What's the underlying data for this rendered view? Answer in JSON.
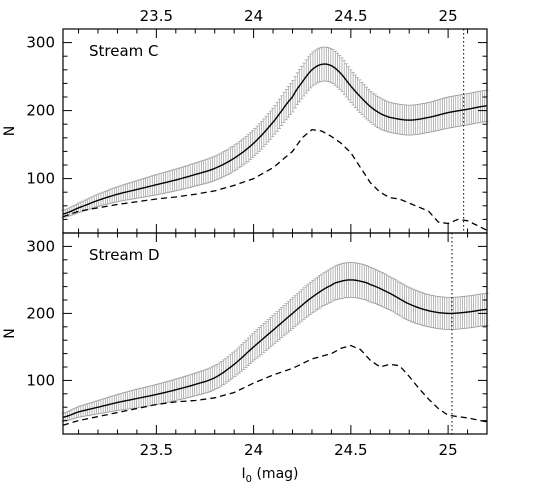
{
  "chart_data": [
    {
      "type": "line",
      "panel_label": "Stream C",
      "xlabel": "I",
      "xlabel_subscript": "0",
      "xlabel_suffix": " (mag)",
      "ylabel": "N",
      "xlim": [
        23.02,
        25.2
      ],
      "ylim": [
        20,
        320
      ],
      "xticks": [
        23.5,
        24,
        24.5,
        25
      ],
      "xtick_labels": [
        "23.5",
        "24",
        "24.5",
        "25"
      ],
      "yticks": [
        100,
        200,
        300
      ],
      "ytick_labels": [
        "100",
        "200",
        "300"
      ],
      "vline_x": 25.08,
      "vline_style": "dotted",
      "grid": false,
      "series": [
        {
          "style": "solid-with-errorbars",
          "x": [
            23.02,
            23.1,
            23.2,
            23.3,
            23.4,
            23.5,
            23.6,
            23.7,
            23.8,
            23.9,
            24.0,
            24.1,
            24.2,
            24.25,
            24.3,
            24.35,
            24.4,
            24.45,
            24.5,
            24.55,
            24.6,
            24.65,
            24.7,
            24.8,
            24.9,
            25.0,
            25.1,
            25.2
          ],
          "values": [
            48,
            57,
            68,
            77,
            84,
            91,
            98,
            106,
            115,
            130,
            152,
            183,
            220,
            242,
            260,
            268,
            266,
            254,
            236,
            220,
            206,
            196,
            190,
            186,
            190,
            197,
            202,
            207
          ],
          "error": [
            5,
            7,
            9,
            11,
            13,
            15,
            16,
            17,
            18,
            19,
            20,
            21,
            23,
            24,
            25,
            25,
            25,
            25,
            24,
            24,
            23,
            23,
            22,
            22,
            22,
            23,
            23,
            23
          ]
        },
        {
          "style": "dashed",
          "x": [
            23.02,
            23.1,
            23.2,
            23.3,
            23.4,
            23.5,
            23.6,
            23.7,
            23.8,
            23.9,
            24.0,
            24.1,
            24.2,
            24.25,
            24.3,
            24.35,
            24.4,
            24.45,
            24.5,
            24.55,
            24.6,
            24.65,
            24.7,
            24.75,
            24.8,
            24.85,
            24.9,
            24.95,
            25.0,
            25.05,
            25.1,
            25.2
          ],
          "values": [
            44,
            52,
            57,
            62,
            66,
            70,
            73,
            77,
            82,
            90,
            100,
            116,
            140,
            160,
            172,
            170,
            162,
            152,
            138,
            116,
            94,
            80,
            72,
            70,
            64,
            58,
            52,
            36,
            34,
            40,
            38,
            24
          ]
        }
      ]
    },
    {
      "type": "line",
      "panel_label": "Stream D",
      "xlabel": "I",
      "xlabel_subscript": "0",
      "xlabel_suffix": " (mag)",
      "ylabel": "N",
      "xlim": [
        23.02,
        25.2
      ],
      "ylim": [
        20,
        320
      ],
      "xticks": [
        23.5,
        24,
        24.5,
        25
      ],
      "xtick_labels": [
        "23.5",
        "24",
        "24.5",
        "25"
      ],
      "yticks": [
        100,
        200,
        300
      ],
      "ytick_labels": [
        "100",
        "200",
        "300"
      ],
      "vline_x": 25.02,
      "vline_style": "dotted",
      "grid": false,
      "series": [
        {
          "style": "solid-with-errorbars",
          "x": [
            23.02,
            23.1,
            23.2,
            23.3,
            23.4,
            23.5,
            23.6,
            23.7,
            23.8,
            23.9,
            24.0,
            24.1,
            24.2,
            24.3,
            24.4,
            24.45,
            24.5,
            24.55,
            24.6,
            24.7,
            24.8,
            24.9,
            25.0,
            25.1,
            25.2
          ],
          "values": [
            45,
            53,
            60,
            67,
            73,
            79,
            86,
            94,
            104,
            124,
            150,
            175,
            200,
            224,
            242,
            248,
            250,
            248,
            243,
            230,
            214,
            204,
            200,
            202,
            206
          ],
          "error": [
            6,
            8,
            10,
            12,
            14,
            15,
            16,
            17,
            18,
            19,
            21,
            22,
            23,
            24,
            25,
            26,
            26,
            26,
            26,
            25,
            25,
            24,
            24,
            24,
            24
          ]
        },
        {
          "style": "dashed",
          "x": [
            23.02,
            23.1,
            23.2,
            23.3,
            23.4,
            23.5,
            23.6,
            23.7,
            23.8,
            23.9,
            24.0,
            24.1,
            24.2,
            24.3,
            24.4,
            24.45,
            24.5,
            24.55,
            24.6,
            24.65,
            24.7,
            24.75,
            24.8,
            24.85,
            24.9,
            24.95,
            25.0,
            25.05,
            25.1,
            25.2
          ],
          "values": [
            33,
            40,
            46,
            52,
            58,
            64,
            68,
            70,
            74,
            82,
            96,
            108,
            118,
            132,
            140,
            148,
            152,
            146,
            130,
            120,
            124,
            122,
            106,
            88,
            72,
            58,
            48,
            46,
            44,
            38
          ]
        }
      ]
    }
  ]
}
